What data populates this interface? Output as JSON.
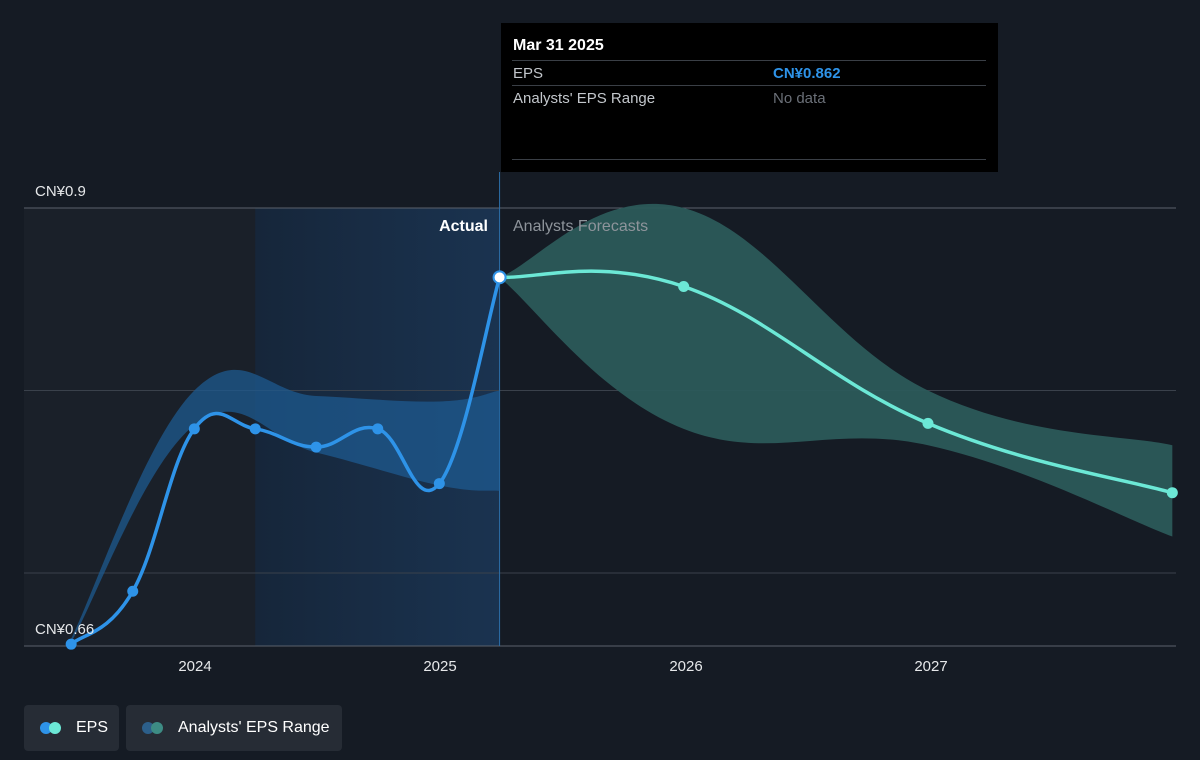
{
  "chart_data": {
    "type": "line",
    "ylim": [
      0.66,
      0.9
    ],
    "y_tick_labels": [
      "CN¥0.9",
      "CN¥0.66"
    ],
    "x_tick_labels": [
      "2024",
      "2025",
      "2026",
      "2027"
    ],
    "region_labels": {
      "actual": "Actual",
      "forecast": "Analysts Forecasts"
    },
    "series": [
      {
        "name": "EPS",
        "kind": "actual",
        "color": "#2e93e8",
        "points": [
          {
            "x": "2023-06-30",
            "y": 0.661
          },
          {
            "x": "2023-09-30",
            "y": 0.69
          },
          {
            "x": "2023-12-31",
            "y": 0.779
          },
          {
            "x": "2024-03-31",
            "y": 0.779
          },
          {
            "x": "2024-06-30",
            "y": 0.769
          },
          {
            "x": "2024-09-30",
            "y": 0.779
          },
          {
            "x": "2024-12-31",
            "y": 0.749
          },
          {
            "x": "2025-03-31",
            "y": 0.862
          }
        ]
      },
      {
        "name": "EPS",
        "kind": "forecast",
        "color": "#6ce8d6",
        "points": [
          {
            "x": "2025-03-31",
            "y": 0.862
          },
          {
            "x": "2025-12-31",
            "y": 0.857
          },
          {
            "x": "2026-12-31",
            "y": 0.782
          },
          {
            "x": "2027-12-31",
            "y": 0.744
          }
        ]
      },
      {
        "name": "Analysts' EPS Range",
        "kind": "range",
        "color": "#2b5a5a",
        "points": [
          {
            "x": "2025-03-31",
            "low": 0.862,
            "high": 0.862
          },
          {
            "x": "2025-12-31",
            "low": 0.779,
            "high": 0.9
          },
          {
            "x": "2026-12-31",
            "low": 0.77,
            "high": 0.8
          },
          {
            "x": "2027-12-31",
            "low": 0.72,
            "high": 0.77
          }
        ]
      }
    ],
    "past_range_band": [
      {
        "x": "2023-06-30",
        "low": 0.662,
        "high": 0.664
      },
      {
        "x": "2023-12-31",
        "low": 0.781,
        "high": 0.8
      },
      {
        "x": "2024-06-30",
        "low": 0.766,
        "high": 0.797
      },
      {
        "x": "2024-12-31",
        "low": 0.748,
        "high": 0.794
      },
      {
        "x": "2025-03-31",
        "low": 0.745,
        "high": 0.8
      }
    ]
  },
  "tooltip": {
    "date": "Mar 31 2025",
    "eps_label": "EPS",
    "eps_value": "CN¥0.862",
    "range_label": "Analysts' EPS Range",
    "range_value": "No data"
  },
  "legend": {
    "eps_label": "EPS",
    "range_label": "Analysts' EPS Range",
    "eps_colors": [
      "#2e93e8",
      "#6ce8d6"
    ],
    "range_colors": [
      "#2c5f8a",
      "#3d8c84"
    ]
  },
  "colors": {
    "background": "#151b24",
    "past_shade": "#1a2029",
    "highlight_band": "#1a3350",
    "actual_band": "#1d5a8f",
    "forecast_band": "#2b5a5a",
    "eps_actual": "#2e93e8",
    "eps_forecast": "#6ce8d6",
    "grid": "#3a414b"
  }
}
